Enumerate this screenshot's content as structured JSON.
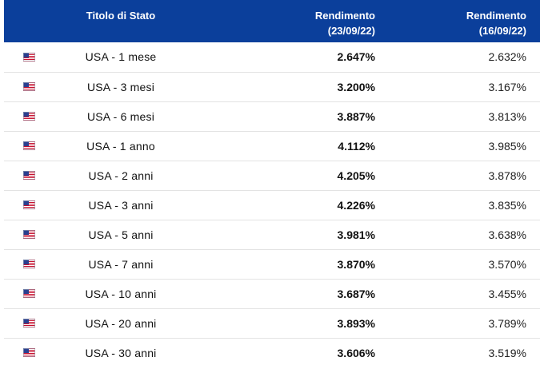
{
  "header": {
    "col_title": "Titolo di Stato",
    "col_current": [
      "Rendimento",
      "(23/09/22)"
    ],
    "col_prior": [
      "Rendimento",
      "(16/09/22)"
    ],
    "accent_color": "#0b3f9b"
  },
  "rows": [
    {
      "flag": "us-flag-icon",
      "name": "USA - 1 mese",
      "current": "2.647%",
      "prior": "2.632%"
    },
    {
      "flag": "us-flag-icon",
      "name": "USA - 3 mesi",
      "current": "3.200%",
      "prior": "3.167%"
    },
    {
      "flag": "us-flag-icon",
      "name": "USA - 6 mesi",
      "current": "3.887%",
      "prior": "3.813%"
    },
    {
      "flag": "us-flag-icon",
      "name": "USA - 1 anno",
      "current": "4.112%",
      "prior": "3.985%"
    },
    {
      "flag": "us-flag-icon",
      "name": "USA - 2 anni",
      "current": "4.205%",
      "prior": "3.878%"
    },
    {
      "flag": "us-flag-icon",
      "name": "USA - 3 anni",
      "current": "4.226%",
      "prior": "3.835%"
    },
    {
      "flag": "us-flag-icon",
      "name": "USA - 5 anni",
      "current": "3.981%",
      "prior": "3.638%"
    },
    {
      "flag": "us-flag-icon",
      "name": "USA - 7 anni",
      "current": "3.870%",
      "prior": "3.570%"
    },
    {
      "flag": "us-flag-icon",
      "name": "USA - 10 anni",
      "current": "3.687%",
      "prior": "3.455%"
    },
    {
      "flag": "us-flag-icon",
      "name": "USA - 20 anni",
      "current": "3.893%",
      "prior": "3.789%"
    },
    {
      "flag": "us-flag-icon",
      "name": "USA - 30 anni",
      "current": "3.606%",
      "prior": "3.519%"
    }
  ]
}
